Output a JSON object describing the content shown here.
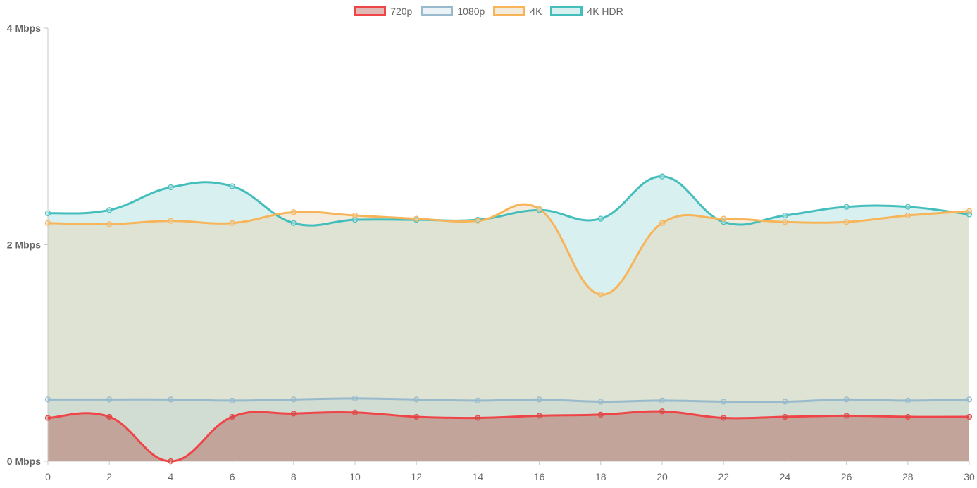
{
  "chart_data": {
    "type": "area",
    "x": [
      0,
      2,
      4,
      6,
      8,
      10,
      12,
      14,
      16,
      18,
      20,
      22,
      24,
      26,
      28,
      30
    ],
    "xlim": [
      0,
      30
    ],
    "ylim": [
      0,
      4
    ],
    "y_ticks": [
      {
        "value": 0,
        "label": "0 Mbps"
      },
      {
        "value": 2,
        "label": "2 Mbps"
      },
      {
        "value": 4,
        "label": "4 Mbps"
      }
    ],
    "x_tick_labels": [
      "0",
      "2",
      "4",
      "6",
      "8",
      "10",
      "12",
      "14",
      "16",
      "18",
      "20",
      "22",
      "24",
      "26",
      "28",
      "30"
    ],
    "legend_position": "top-center",
    "grid": false,
    "smooth": true,
    "series": [
      {
        "name": "720p",
        "color": "#ef4548",
        "fill": "rgba(175,80,70,0.40)",
        "values": [
          0.4,
          0.41,
          0.0,
          0.41,
          0.44,
          0.45,
          0.41,
          0.4,
          0.42,
          0.43,
          0.46,
          0.4,
          0.41,
          0.42,
          0.41,
          0.41
        ]
      },
      {
        "name": "1080p",
        "color": "#98bacc",
        "fill": "rgba(152,186,204,0.18)",
        "values": [
          0.57,
          0.57,
          0.57,
          0.56,
          0.57,
          0.58,
          0.57,
          0.56,
          0.57,
          0.55,
          0.56,
          0.55,
          0.55,
          0.57,
          0.56,
          0.57
        ]
      },
      {
        "name": "4K",
        "color": "#f8b458",
        "fill": "rgba(228,210,175,0.45)",
        "values": [
          2.2,
          2.19,
          2.22,
          2.2,
          2.3,
          2.27,
          2.24,
          2.22,
          2.33,
          1.54,
          2.2,
          2.24,
          2.21,
          2.21,
          2.27,
          2.31
        ]
      },
      {
        "name": "4K HDR",
        "color": "#44bebc",
        "fill": "rgba(186,228,229,0.55)",
        "values": [
          2.29,
          2.32,
          2.53,
          2.54,
          2.2,
          2.23,
          2.23,
          2.23,
          2.32,
          2.24,
          2.63,
          2.21,
          2.27,
          2.35,
          2.35,
          2.28
        ]
      }
    ]
  }
}
